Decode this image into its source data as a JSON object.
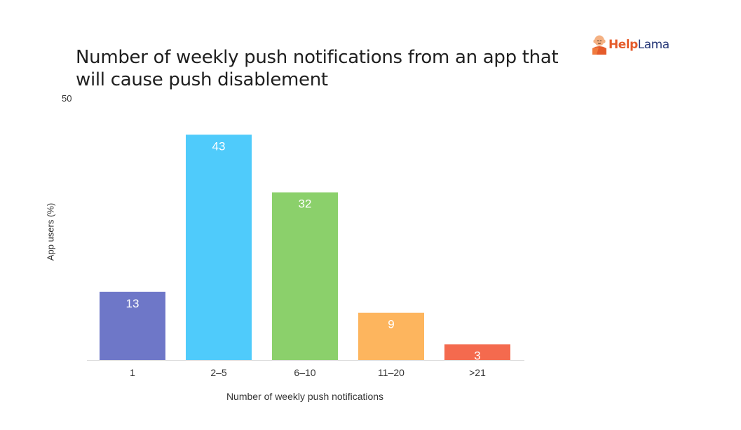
{
  "logo": {
    "part1": "Help",
    "part2": "Lama",
    "icon": "lama-mascot-icon"
  },
  "chart_data": {
    "type": "bar",
    "title": "Number of weekly push notifications from an app that will cause push disablement",
    "xlabel": "Number of weekly push notifications",
    "ylabel": "App users (%)",
    "ytop_label": "50",
    "ylim": [
      0,
      50
    ],
    "grid": false,
    "categories": [
      "1",
      "2–5",
      "6–10",
      "11–20",
      ">21"
    ],
    "values": [
      13,
      43,
      32,
      9,
      3
    ],
    "colors": [
      "#6e77c8",
      "#4fcbfb",
      "#8bd06b",
      "#fdb55e",
      "#f46a4e"
    ],
    "axis_color": "#d9d9d9"
  }
}
